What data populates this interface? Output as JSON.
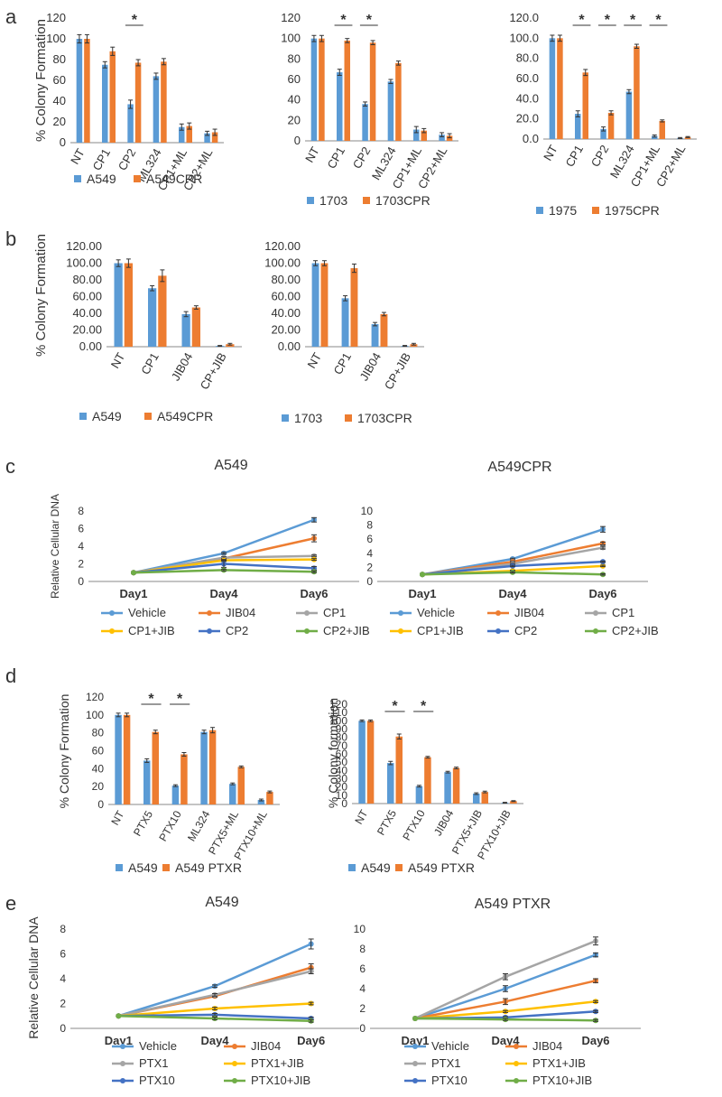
{
  "colors": {
    "blue": "#5b9bd5",
    "orange": "#ed7d31",
    "gray": "#a5a5a5",
    "yellow": "#ffc000",
    "darkblue": "#4472c4",
    "green": "#70ad47",
    "axis": "#888888",
    "err": "#333333"
  },
  "panel_labels": [
    "a",
    "b",
    "c",
    "d",
    "e"
  ],
  "chart_data": [
    {
      "id": "a1",
      "type": "bar",
      "title": "",
      "ylabel": "% Colony Formation",
      "ylim": [
        0,
        120
      ],
      "yticks": [
        "0",
        "20",
        "40",
        "60",
        "80",
        "100",
        "120"
      ],
      "categories": [
        "NT",
        "CP1",
        "CP2",
        "ML324",
        "CP1+ML",
        "CP2+ML"
      ],
      "series": [
        {
          "name": "A549",
          "color": "blue",
          "values": [
            100,
            75,
            37,
            64,
            15,
            9
          ],
          "errors": [
            4,
            3,
            4,
            3,
            3,
            2
          ]
        },
        {
          "name": "A549CPR",
          "color": "orange",
          "values": [
            100,
            88,
            77,
            78,
            16,
            10
          ],
          "errors": [
            4,
            4,
            3,
            3,
            3,
            3
          ]
        }
      ],
      "significance": [
        {
          "category": 2,
          "label": "*"
        }
      ],
      "legend": "bottom"
    },
    {
      "id": "a2",
      "type": "bar",
      "title": "",
      "ylabel": "",
      "ylim": [
        0,
        120
      ],
      "yticks": [
        "0",
        "20",
        "40",
        "60",
        "80",
        "100",
        "120"
      ],
      "categories": [
        "NT",
        "CP1",
        "CP2",
        "ML324",
        "CP1+ML",
        "CP2+ML"
      ],
      "series": [
        {
          "name": "1703",
          "color": "blue",
          "values": [
            100,
            67,
            36,
            58,
            11,
            6
          ],
          "errors": [
            3,
            3,
            2,
            2,
            3,
            2
          ]
        },
        {
          "name": "1703CPR",
          "color": "orange",
          "values": [
            100,
            98,
            96,
            76,
            10,
            5
          ],
          "errors": [
            3,
            2,
            2,
            2,
            2,
            2
          ]
        }
      ],
      "significance": [
        {
          "category": 1,
          "label": "*"
        },
        {
          "category": 2,
          "label": "*"
        }
      ],
      "legend": "bottom"
    },
    {
      "id": "a3",
      "type": "bar",
      "title": "",
      "ylabel": "",
      "ylim": [
        0,
        120
      ],
      "yticks": [
        "0.0",
        "20.0",
        "40.0",
        "60.0",
        "80.0",
        "100.0",
        "120.0"
      ],
      "categories": [
        "NT",
        "CP1",
        "CP2",
        "ML324",
        "CP1+ML",
        "CP2+ML"
      ],
      "series": [
        {
          "name": "1975",
          "color": "blue",
          "values": [
            100,
            25,
            10,
            47,
            3,
            1
          ],
          "errors": [
            3,
            3,
            2,
            2,
            1,
            0.5
          ]
        },
        {
          "name": "1975CPR",
          "color": "orange",
          "values": [
            100,
            66,
            26,
            92,
            18,
            2
          ],
          "errors": [
            3,
            3,
            2,
            2,
            1,
            0.5
          ]
        }
      ],
      "significance": [
        {
          "category": 1,
          "label": "*"
        },
        {
          "category": 2,
          "label": "*"
        },
        {
          "category": 3,
          "label": "*"
        },
        {
          "category": 4,
          "label": "*"
        }
      ],
      "legend": "bottom"
    },
    {
      "id": "b1",
      "type": "bar",
      "title": "",
      "ylabel": "% Colony Formation",
      "ylim": [
        0,
        120
      ],
      "yticks": [
        "0.00",
        "20.00",
        "40.00",
        "60.00",
        "80.00",
        "100.00",
        "120.00"
      ],
      "categories": [
        "NT",
        "CP1",
        "JIB04",
        "CP+JIB"
      ],
      "series": [
        {
          "name": "A549",
          "color": "blue",
          "values": [
            100,
            70,
            39,
            1
          ],
          "errors": [
            4,
            3,
            3,
            0.5
          ]
        },
        {
          "name": "A549CPR",
          "color": "orange",
          "values": [
            100,
            85,
            47,
            3
          ],
          "errors": [
            5,
            7,
            2,
            1
          ]
        }
      ],
      "significance": [],
      "legend": "bottom"
    },
    {
      "id": "b2",
      "type": "bar",
      "title": "",
      "ylabel": "",
      "ylim": [
        0,
        120
      ],
      "yticks": [
        "0.00",
        "20.00",
        "40.00",
        "60.00",
        "80.00",
        "100.00",
        "120.00"
      ],
      "categories": [
        "NT",
        "CP1",
        "JIB04",
        "CP+JIB"
      ],
      "series": [
        {
          "name": "1703",
          "color": "blue",
          "values": [
            100,
            58,
            27,
            1
          ],
          "errors": [
            3,
            3,
            2,
            0.5
          ]
        },
        {
          "name": "1703CPR",
          "color": "orange",
          "values": [
            100,
            94,
            39,
            3
          ],
          "errors": [
            3,
            5,
            2,
            1
          ]
        }
      ],
      "significance": [],
      "legend": "bottom"
    },
    {
      "id": "c1",
      "type": "line",
      "title": "A549",
      "ylabel": "Relative Cellular DNA",
      "ylim": [
        0,
        8
      ],
      "yticks": [
        "0",
        "2",
        "4",
        "6",
        "8"
      ],
      "categories": [
        "Day1",
        "Day4",
        "Day6"
      ],
      "series": [
        {
          "name": "Vehicle",
          "color": "blue",
          "values": [
            1,
            3.2,
            7
          ],
          "errors": [
            0,
            0.1,
            0.25
          ]
        },
        {
          "name": "JIB04",
          "color": "orange",
          "values": [
            1,
            2.6,
            4.9
          ],
          "errors": [
            0,
            0.1,
            0.4
          ]
        },
        {
          "name": "CP1",
          "color": "gray",
          "values": [
            1,
            2.7,
            2.9
          ],
          "errors": [
            0,
            0.1,
            0.1
          ]
        },
        {
          "name": "CP1+JIB",
          "color": "yellow",
          "values": [
            1,
            2.4,
            2.5
          ],
          "errors": [
            0,
            0.1,
            0.1
          ]
        },
        {
          "name": "CP2",
          "color": "darkblue",
          "values": [
            1,
            2.0,
            1.5
          ],
          "errors": [
            0,
            0.4,
            0.2
          ]
        },
        {
          "name": "CP2+JIB",
          "color": "green",
          "values": [
            1,
            1.3,
            1.1
          ],
          "errors": [
            0,
            0.1,
            0.1
          ]
        }
      ],
      "legend_rows": [
        [
          "Vehicle",
          "JIB04",
          "CP1"
        ],
        [
          "CP1+JIB",
          "CP2",
          "CP2+JIB"
        ]
      ]
    },
    {
      "id": "c2",
      "type": "line",
      "title": "A549CPR",
      "ylabel": "",
      "ylim": [
        0,
        10
      ],
      "yticks": [
        "0",
        "2",
        "4",
        "6",
        "8",
        "10"
      ],
      "categories": [
        "Day1",
        "Day4",
        "Day6"
      ],
      "series": [
        {
          "name": "Vehicle",
          "color": "blue",
          "values": [
            1,
            3.2,
            7.4
          ],
          "errors": [
            0,
            0.1,
            0.4
          ]
        },
        {
          "name": "JIB04",
          "color": "orange",
          "values": [
            1,
            2.8,
            5.4
          ],
          "errors": [
            0,
            0.1,
            0.2
          ]
        },
        {
          "name": "CP1",
          "color": "gray",
          "values": [
            1,
            2.5,
            4.8
          ],
          "errors": [
            0,
            0.1,
            0.2
          ]
        },
        {
          "name": "CP1+JIB",
          "color": "yellow",
          "values": [
            1,
            1.5,
            2.2
          ],
          "errors": [
            0,
            0.1,
            0.1
          ]
        },
        {
          "name": "CP2",
          "color": "darkblue",
          "values": [
            1,
            2.2,
            2.8
          ],
          "errors": [
            0,
            0.1,
            0.1
          ]
        },
        {
          "name": "CP2+JIB",
          "color": "green",
          "values": [
            1,
            1.3,
            1.0
          ],
          "errors": [
            0,
            0.1,
            0.1
          ]
        }
      ],
      "legend_rows": [
        [
          "Vehicle",
          "JIB04",
          "CP1"
        ],
        [
          "CP1+JIB",
          "CP2",
          "CP2+JIB"
        ]
      ]
    },
    {
      "id": "d1",
      "type": "bar",
      "title": "",
      "ylabel": "% Colony Formation",
      "ylim": [
        0,
        120
      ],
      "yticks": [
        "0",
        "20",
        "40",
        "60",
        "80",
        "100",
        "120"
      ],
      "categories": [
        "NT",
        "PTX5",
        "PTX10",
        "ML324",
        "PTX5+ML",
        "PTX10+ML"
      ],
      "series": [
        {
          "name": "A549",
          "color": "blue",
          "values": [
            100,
            49,
            21,
            81,
            23,
            5
          ],
          "errors": [
            2,
            2,
            1,
            2,
            1,
            1
          ]
        },
        {
          "name": "A549 PTXR",
          "color": "orange",
          "values": [
            100,
            81,
            56,
            83,
            42,
            14
          ],
          "errors": [
            2,
            2,
            2,
            3,
            1,
            1
          ]
        }
      ],
      "significance": [
        {
          "category": 1,
          "label": "*"
        },
        {
          "category": 2,
          "label": "*"
        }
      ],
      "legend": "bottom"
    },
    {
      "id": "d2",
      "type": "bar",
      "title": "",
      "ylabel": "% Colony formation",
      "ylim": [
        0,
        120
      ],
      "yticks": [
        "0",
        "10",
        "20",
        "30",
        "40",
        "50",
        "60",
        "70",
        "80",
        "90",
        "100",
        "110",
        "120"
      ],
      "categories": [
        "NT",
        "PTX5",
        "PTX10",
        "JIB04",
        "PTX5+JIB",
        "PTX10+JIB"
      ],
      "series": [
        {
          "name": "A549",
          "color": "blue",
          "values": [
            100,
            49,
            21,
            38,
            12,
            1
          ],
          "errors": [
            1,
            2,
            1,
            1,
            1,
            0.5
          ]
        },
        {
          "name": "A549 PTXR",
          "color": "orange",
          "values": [
            100,
            81,
            56,
            43,
            14,
            3
          ],
          "errors": [
            1,
            3,
            1,
            1,
            1,
            0.5
          ]
        }
      ],
      "significance": [
        {
          "category": 1,
          "label": "*"
        },
        {
          "category": 2,
          "label": "*"
        }
      ],
      "legend": "bottom"
    },
    {
      "id": "e1",
      "type": "line",
      "title": "A549",
      "ylabel": "Relative Cellular DNA",
      "ylim": [
        0,
        8
      ],
      "yticks": [
        "0",
        "2",
        "4",
        "6",
        "8"
      ],
      "categories": [
        "Day1",
        "Day4",
        "Day6"
      ],
      "series": [
        {
          "name": "Vehicle",
          "color": "blue",
          "values": [
            1,
            3.4,
            6.8
          ],
          "errors": [
            0,
            0.1,
            0.4
          ]
        },
        {
          "name": "JIB04",
          "color": "orange",
          "values": [
            1,
            2.6,
            4.9
          ],
          "errors": [
            0,
            0.1,
            0.3
          ]
        },
        {
          "name": "PTX1",
          "color": "gray",
          "values": [
            1,
            2.7,
            4.6
          ],
          "errors": [
            0,
            0.1,
            0.2
          ]
        },
        {
          "name": "PTX1+JIB",
          "color": "yellow",
          "values": [
            1,
            1.6,
            2.0
          ],
          "errors": [
            0,
            0.1,
            0.1
          ]
        },
        {
          "name": "PTX10",
          "color": "darkblue",
          "values": [
            1,
            1.1,
            0.8
          ],
          "errors": [
            0,
            0.1,
            0.1
          ]
        },
        {
          "name": "PTX10+JIB",
          "color": "green",
          "values": [
            1,
            0.8,
            0.6
          ],
          "errors": [
            0,
            0.1,
            0.1
          ]
        }
      ],
      "legend_rows": [
        [
          "Vehicle",
          "JIB04"
        ],
        [
          "PTX1",
          "PTX1+JIB"
        ],
        [
          "PTX10",
          "PTX10+JIB"
        ]
      ]
    },
    {
      "id": "e2",
      "type": "line",
      "title": "A549 PTXR",
      "ylabel": "",
      "ylim": [
        0,
        10
      ],
      "yticks": [
        "0",
        "2",
        "4",
        "6",
        "8",
        "10"
      ],
      "categories": [
        "Day1",
        "Day4",
        "Day6"
      ],
      "series": [
        {
          "name": "Vehicle",
          "color": "blue",
          "values": [
            1,
            4.0,
            7.4
          ],
          "errors": [
            0,
            0.3,
            0.2
          ]
        },
        {
          "name": "JIB04",
          "color": "orange",
          "values": [
            1,
            2.7,
            4.8
          ],
          "errors": [
            0,
            0.3,
            0.2
          ]
        },
        {
          "name": "PTX1",
          "color": "gray",
          "values": [
            1,
            5.2,
            8.8
          ],
          "errors": [
            0,
            0.3,
            0.4
          ]
        },
        {
          "name": "PTX1+JIB",
          "color": "yellow",
          "values": [
            1,
            1.7,
            2.7
          ],
          "errors": [
            0,
            0.1,
            0.1
          ]
        },
        {
          "name": "PTX10",
          "color": "darkblue",
          "values": [
            1,
            1.1,
            1.7
          ],
          "errors": [
            0,
            0.1,
            0.1
          ]
        },
        {
          "name": "PTX10+JIB",
          "color": "green",
          "values": [
            1,
            0.9,
            0.8
          ],
          "errors": [
            0,
            0.1,
            0.1
          ]
        }
      ],
      "legend_rows": [
        [
          "Vehicle",
          "JIB04"
        ],
        [
          "PTX1",
          "PTX1+JIB"
        ],
        [
          "PTX10",
          "PTX10+JIB"
        ]
      ]
    }
  ]
}
